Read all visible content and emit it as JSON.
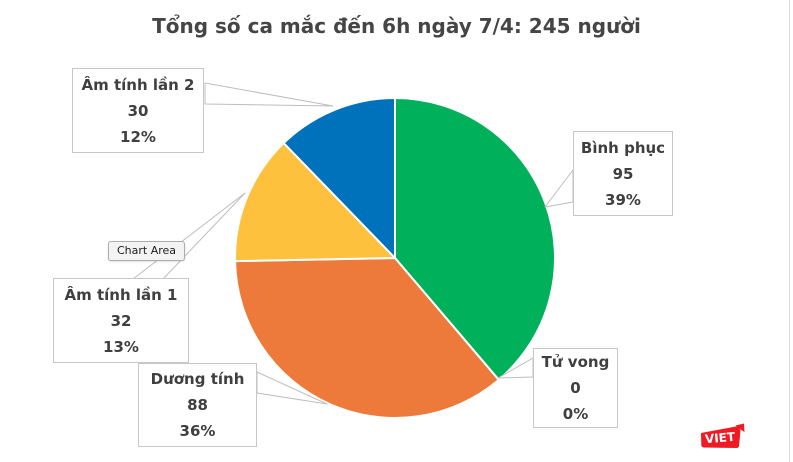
{
  "title": "Tổng số ca mắc đến 6h ngày 7/4: 245 người",
  "chart_data": {
    "type": "pie",
    "title": "Tổng số ca mắc đến 6h ngày 7/4: 245 người",
    "total": 245,
    "start_angle_deg": 0,
    "direction": "clockwise-from-top",
    "segments": [
      {
        "label": "Bình phục",
        "value": 95,
        "percent": "39%",
        "color": "#00b05b"
      },
      {
        "label": "Tử vong",
        "value": 0,
        "percent": "0%"
      },
      {
        "label": "Dương tính",
        "value": 88,
        "percent": "36%",
        "color": "#ed7a3b"
      },
      {
        "label": "Âm tính lần 1",
        "value": 32,
        "percent": "13%",
        "color": "#fec13d"
      },
      {
        "label": "Âm tính lần 2",
        "value": 30,
        "percent": "12%",
        "color": "#0072bc"
      }
    ]
  },
  "tooltip": {
    "text": "Chart Area"
  },
  "logo": {
    "text": "VIET",
    "color": "#ee1b24"
  }
}
